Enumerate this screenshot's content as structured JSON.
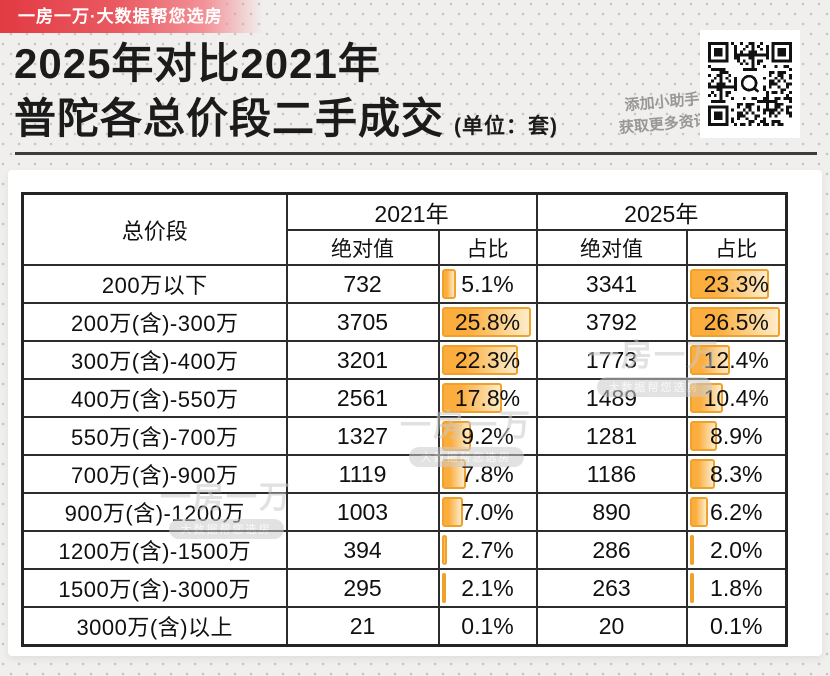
{
  "banner": {
    "text": "一房一万·大数据帮您选房"
  },
  "header": {
    "title_line1": "2025年对比2021年",
    "title_line2": "普陀各总价段二手成交",
    "unit_note": "(单位：套)",
    "qr_caption_line1": "添加小助手",
    "qr_caption_line2": "获取更多资讯"
  },
  "watermark": {
    "brand": "一房一万",
    "tagline": "大数据帮您选房"
  },
  "table_header": {
    "price_col": "总价段",
    "year_2021": "2021年",
    "year_2025": "2025年",
    "abs_label": "绝对值",
    "pct_label": "占比"
  },
  "accent_colors": {
    "bar_fill": "#fbad3d",
    "bar_border": "#f1a02a",
    "banner_red": "#e23a43"
  },
  "chart_data": {
    "type": "table",
    "title": "2025年对比2021年 普陀各总价段二手成交",
    "unit": "套",
    "column_groups": [
      "总价段",
      "2021年",
      "2025年"
    ],
    "sub_columns": [
      "绝对值",
      "占比"
    ],
    "rows": [
      {
        "label": "200万以下",
        "abs_2021": "732",
        "pct_2021": "5.1%",
        "abs_2025": "3341",
        "pct_2025": "23.3%"
      },
      {
        "label": "200万(含)-300万",
        "abs_2021": "3705",
        "pct_2021": "25.8%",
        "abs_2025": "3792",
        "pct_2025": "26.5%"
      },
      {
        "label": "300万(含)-400万",
        "abs_2021": "3201",
        "pct_2021": "22.3%",
        "abs_2025": "1773",
        "pct_2025": "12.4%"
      },
      {
        "label": "400万(含)-550万",
        "abs_2021": "2561",
        "pct_2021": "17.8%",
        "abs_2025": "1489",
        "pct_2025": "10.4%"
      },
      {
        "label": "550万(含)-700万",
        "abs_2021": "1327",
        "pct_2021": "9.2%",
        "abs_2025": "1281",
        "pct_2025": "8.9%"
      },
      {
        "label": "700万(含)-900万",
        "abs_2021": "1119",
        "pct_2021": "7.8%",
        "abs_2025": "1186",
        "pct_2025": "8.3%"
      },
      {
        "label": "900万(含)-1200万",
        "abs_2021": "1003",
        "pct_2021": "7.0%",
        "abs_2025": "890",
        "pct_2025": "6.2%"
      },
      {
        "label": "1200万(含)-1500万",
        "abs_2021": "394",
        "pct_2021": "2.7%",
        "abs_2025": "286",
        "pct_2025": "2.0%"
      },
      {
        "label": "1500万(含)-3000万",
        "abs_2021": "295",
        "pct_2021": "2.1%",
        "abs_2025": "263",
        "pct_2025": "1.8%"
      },
      {
        "label": "3000万(含)以上",
        "abs_2021": "21",
        "pct_2021": "0.1%",
        "abs_2025": "20",
        "pct_2025": "0.1%"
      }
    ]
  }
}
